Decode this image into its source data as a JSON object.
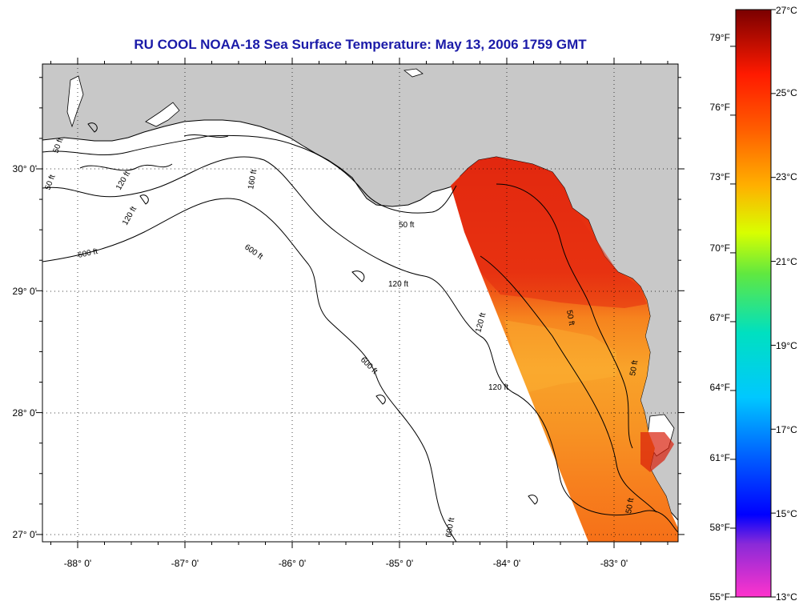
{
  "title": "RU COOL  NOAA-18  Sea Surface Temperature:  May 13, 2006 1759 GMT",
  "lon_labels": [
    "-88° 0'",
    "-87° 0'",
    "-86° 0'",
    "-85° 0'",
    "-84° 0'",
    "-83° 0'"
  ],
  "lat_labels": [
    "30° 0'",
    "29° 0'",
    "28° 0'",
    "27° 0'"
  ],
  "lon_values": [
    -88,
    -87,
    -86,
    -85,
    -84,
    -83
  ],
  "lat_values": [
    30,
    29,
    28,
    27
  ],
  "contour_labels": [
    "50 ft",
    "50 ft",
    "120 ft",
    "120 ft",
    "600 ft",
    "600 ft",
    "600 ft",
    "160 ft",
    "120 ft",
    "120 ft",
    "50 ft",
    "50 ft",
    "120 ft",
    "600 ft",
    "50 ft",
    "50 ft"
  ],
  "colorbar": {
    "fahrenheit": [
      "79°F",
      "76°F",
      "73°F",
      "70°F",
      "67°F",
      "64°F",
      "61°F",
      "58°F",
      "55°F"
    ],
    "celsius": [
      "27°C",
      "25°C",
      "23°C",
      "21°C",
      "19°C",
      "17°C",
      "15°C",
      "13°C"
    ]
  },
  "colors": {
    "land": "#c8c8c8",
    "ocean": "#ffffff",
    "title": "#1a1aa8",
    "sst_warm": "#e82a10",
    "sst_mid": "#f77a1c",
    "sst_cool": "#f9a128"
  }
}
